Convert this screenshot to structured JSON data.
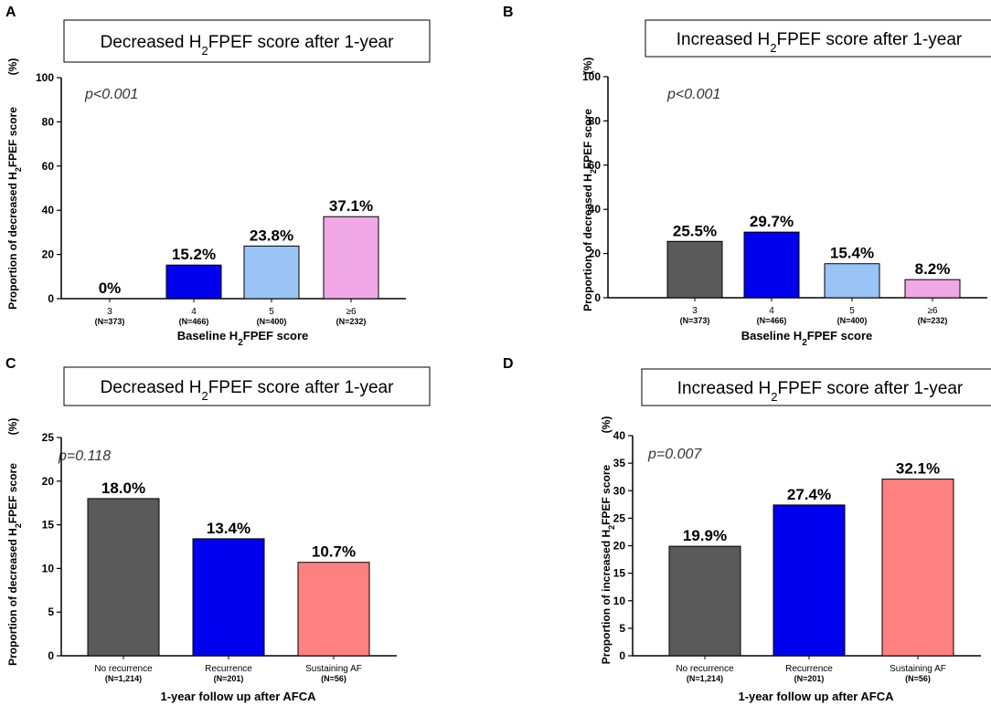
{
  "chart_data": [
    {
      "panel_letter": "A",
      "type": "bar",
      "title": "Decreased H2FPEF score after 1-year",
      "pvalue": "p<0.001",
      "categories": [
        "3",
        "4",
        "5",
        "≥6"
      ],
      "category_counts": [
        "(N=373)",
        "(N=466)",
        "(N=400)",
        "(N=232)"
      ],
      "values": [
        0,
        15.2,
        23.8,
        37.1
      ],
      "value_labels": [
        "0%",
        "15.2%",
        "23.8%",
        "37.1%"
      ],
      "colors": [
        "#5a5a5a",
        "#0000ee",
        "#99c4f5",
        "#f0a8e6"
      ],
      "xlabel": "Baseline H2FPEF score",
      "ylabel": "Proportion of decreased H2FPEF score",
      "ylabel_unit": "(%)",
      "ylim": [
        0,
        100
      ],
      "yticks": [
        0,
        20,
        40,
        60,
        80,
        100
      ]
    },
    {
      "panel_letter": "B",
      "type": "bar",
      "title": "Increased H2FPEF score after 1-year",
      "pvalue": "p<0.001",
      "categories": [
        "3",
        "4",
        "5",
        "≥6"
      ],
      "category_counts": [
        "(N=373)",
        "(N=466)",
        "(N=400)",
        "(N=232)"
      ],
      "values": [
        25.5,
        29.7,
        15.4,
        8.2
      ],
      "value_labels": [
        "25.5%",
        "29.7%",
        "15.4%",
        "8.2%"
      ],
      "colors": [
        "#5a5a5a",
        "#0000ee",
        "#99c4f5",
        "#f0a8e6"
      ],
      "xlabel": "Baseline H2FPEF score",
      "ylabel": "Proportion of decreased H2FPEF score",
      "ylabel_unit": "(%)",
      "ylim": [
        0,
        100
      ],
      "yticks": [
        0,
        20,
        40,
        60,
        80,
        100
      ]
    },
    {
      "panel_letter": "C",
      "type": "bar",
      "title": "Decreased H2FPEF score after 1-year",
      "pvalue": "p=0.118",
      "categories": [
        "No recurrence",
        "Recurrence",
        "Sustaining AF"
      ],
      "category_counts": [
        "(N=1,214)",
        "(N=201)",
        "(N=56)"
      ],
      "values": [
        18.0,
        13.4,
        10.7
      ],
      "value_labels": [
        "18.0%",
        "13.4%",
        "10.7%"
      ],
      "colors": [
        "#5a5a5a",
        "#0000ee",
        "#ff8080"
      ],
      "xlabel": "1-year follow up after AFCA",
      "ylabel": "Proportion of decreased H2FPEF score",
      "ylabel_unit": "(%)",
      "ylim": [
        0,
        25
      ],
      "yticks": [
        0,
        5,
        10,
        15,
        20,
        25
      ]
    },
    {
      "panel_letter": "D",
      "type": "bar",
      "title": "Increased H2FPEF score after 1-year",
      "pvalue": "p=0.007",
      "categories": [
        "No recurrence",
        "Recurrence",
        "Sustaining AF"
      ],
      "category_counts": [
        "(N=1,214)",
        "(N=201)",
        "(N=56)"
      ],
      "values": [
        19.9,
        27.4,
        32.1
      ],
      "value_labels": [
        "19.9%",
        "27.4%",
        "32.1%"
      ],
      "colors": [
        "#5a5a5a",
        "#0000ee",
        "#ff8080"
      ],
      "xlabel": "1-year follow up after AFCA",
      "ylabel": "Proportion of increased H2FPEF score",
      "ylabel_unit": "(%)",
      "ylim": [
        0,
        40
      ],
      "yticks": [
        0,
        5,
        10,
        15,
        20,
        25,
        30,
        35,
        40
      ]
    }
  ]
}
